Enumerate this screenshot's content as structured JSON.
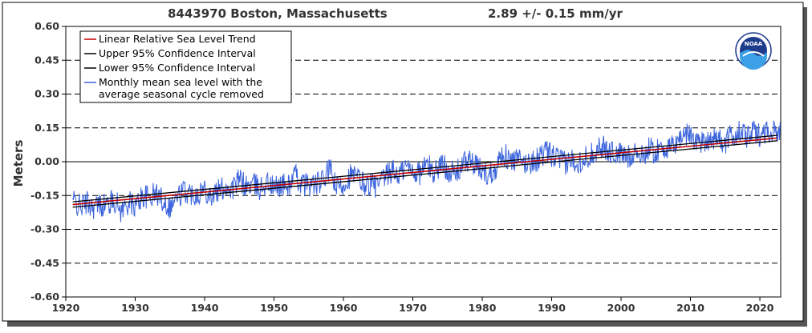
{
  "header": {
    "station": "8443970 Boston, Massachusetts",
    "rate": "2.89 +/-  0.15 mm/yr"
  },
  "logo": {
    "label": "NOAA"
  },
  "chart_data": {
    "type": "line",
    "ylabel": "Meters",
    "xlabel": "",
    "xlim": [
      1920,
      2023
    ],
    "ylim": [
      -0.6,
      0.6
    ],
    "xticks": [
      1920,
      1930,
      1940,
      1950,
      1960,
      1970,
      1980,
      1990,
      2000,
      2010,
      2020
    ],
    "yticks": [
      "0.60",
      "0.45",
      "0.30",
      "0.15",
      "0.00",
      "-0.15",
      "-0.30",
      "-0.45",
      "-0.60"
    ],
    "ytick_values": [
      0.6,
      0.45,
      0.3,
      0.15,
      0.0,
      -0.15,
      -0.3,
      -0.45,
      -0.6
    ],
    "grid": "horizontal-dashed",
    "zero_line": true,
    "legend_position": "top-left",
    "legend": [
      "Linear Relative Sea Level Trend",
      "Upper 95% Confidence Interval",
      "Lower 95% Confidence Interval",
      "Monthly mean sea level with the average seasonal cycle removed"
    ],
    "series": [
      {
        "name": "Linear Relative Sea Level Trend",
        "color": "#c00000",
        "x": [
          1921,
          2022.5
        ],
        "values": [
          -0.19,
          0.105
        ]
      },
      {
        "name": "Upper 95% Confidence Interval",
        "color": "#000000",
        "x": [
          1921,
          2022.5
        ],
        "values": [
          -0.178,
          0.117
        ]
      },
      {
        "name": "Lower 95% Confidence Interval",
        "color": "#000000",
        "x": [
          1921,
          2022.5
        ],
        "values": [
          -0.202,
          0.093
        ]
      },
      {
        "name": "Monthly mean sea level with the average seasonal cycle removed",
        "color": "#3c64dc",
        "x": [
          1921,
          1922,
          1923,
          1924,
          1925,
          1926,
          1927,
          1928,
          1929,
          1930,
          1931,
          1932,
          1933,
          1934,
          1935,
          1936,
          1937,
          1938,
          1939,
          1940,
          1941,
          1942,
          1943,
          1944,
          1945,
          1946,
          1947,
          1948,
          1949,
          1950,
          1951,
          1952,
          1953,
          1954,
          1955,
          1956,
          1957,
          1958,
          1959,
          1960,
          1961,
          1962,
          1963,
          1964,
          1965,
          1966,
          1967,
          1968,
          1969,
          1970,
          1971,
          1972,
          1973,
          1974,
          1975,
          1976,
          1977,
          1978,
          1979,
          1980,
          1981,
          1982,
          1983,
          1984,
          1985,
          1986,
          1987,
          1988,
          1989,
          1990,
          1991,
          1992,
          1993,
          1994,
          1995,
          1996,
          1997,
          1998,
          1999,
          2000,
          2001,
          2002,
          2003,
          2004,
          2005,
          2006,
          2007,
          2008,
          2009,
          2010,
          2011,
          2012,
          2013,
          2014,
          2015,
          2016,
          2017,
          2018,
          2019,
          2020,
          2021,
          2022
        ],
        "values": [
          -0.17,
          -0.2,
          -0.18,
          -0.2,
          -0.19,
          -0.19,
          -0.17,
          -0.22,
          -0.18,
          -0.2,
          -0.15,
          -0.16,
          -0.14,
          -0.17,
          -0.2,
          -0.16,
          -0.13,
          -0.14,
          -0.14,
          -0.12,
          -0.15,
          -0.13,
          -0.11,
          -0.12,
          -0.08,
          -0.11,
          -0.1,
          -0.12,
          -0.09,
          -0.12,
          -0.1,
          -0.11,
          -0.06,
          -0.1,
          -0.1,
          -0.1,
          -0.09,
          -0.03,
          -0.12,
          -0.1,
          -0.06,
          -0.07,
          -0.1,
          -0.1,
          -0.11,
          -0.07,
          -0.04,
          -0.06,
          -0.02,
          -0.04,
          -0.05,
          -0.01,
          -0.05,
          -0.01,
          -0.03,
          -0.06,
          -0.02,
          0.01,
          -0.02,
          -0.04,
          -0.06,
          -0.02,
          0.04,
          0.0,
          0.01,
          -0.01,
          0.0,
          0.01,
          0.04,
          0.03,
          0.01,
          -0.01,
          0.01,
          0.0,
          0.02,
          0.04,
          0.07,
          0.05,
          0.04,
          0.03,
          0.02,
          0.05,
          0.02,
          0.06,
          0.04,
          0.07,
          0.05,
          0.09,
          0.12,
          0.12,
          0.09,
          0.09,
          0.11,
          0.1,
          0.08,
          0.12,
          0.13,
          0.11,
          0.13,
          0.12,
          0.14,
          0.13
        ]
      }
    ]
  }
}
